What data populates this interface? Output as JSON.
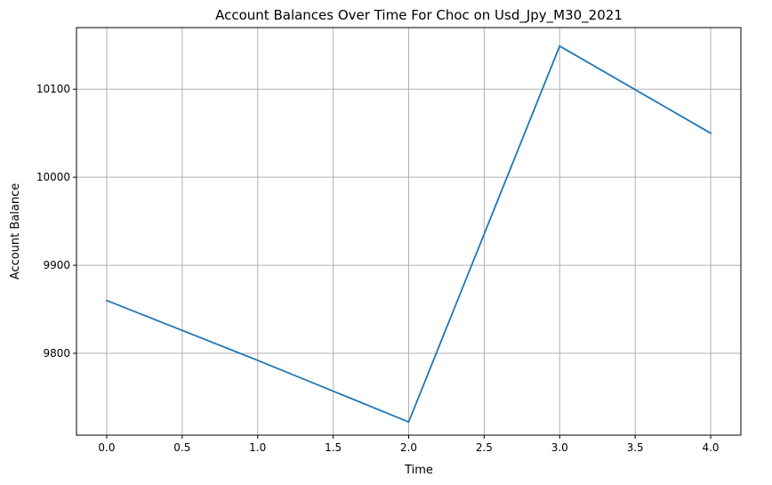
{
  "chart_data": {
    "type": "line",
    "title": "Account Balances Over Time For Choc on Usd_Jpy_M30_2021",
    "xlabel": "Time",
    "ylabel": "Account Balance",
    "x": [
      0,
      1,
      2,
      3,
      4
    ],
    "series": [
      {
        "values": [
          9860,
          9792,
          9722,
          10149,
          10050
        ],
        "color": "#1f77b4"
      }
    ],
    "xlim": [
      -0.2,
      4.2
    ],
    "ylim": [
      9707,
      10170
    ],
    "xticks": [
      0.0,
      0.5,
      1.0,
      1.5,
      2.0,
      2.5,
      3.0,
      3.5,
      4.0
    ],
    "xtick_labels": [
      "0.0",
      "0.5",
      "1.0",
      "1.5",
      "2.0",
      "2.5",
      "3.0",
      "3.5",
      "4.0"
    ],
    "yticks": [
      9800,
      9900,
      10000,
      10100
    ],
    "ytick_labels": [
      "9800",
      "9900",
      "10000",
      "10100"
    ],
    "grid": true,
    "legend": false
  }
}
